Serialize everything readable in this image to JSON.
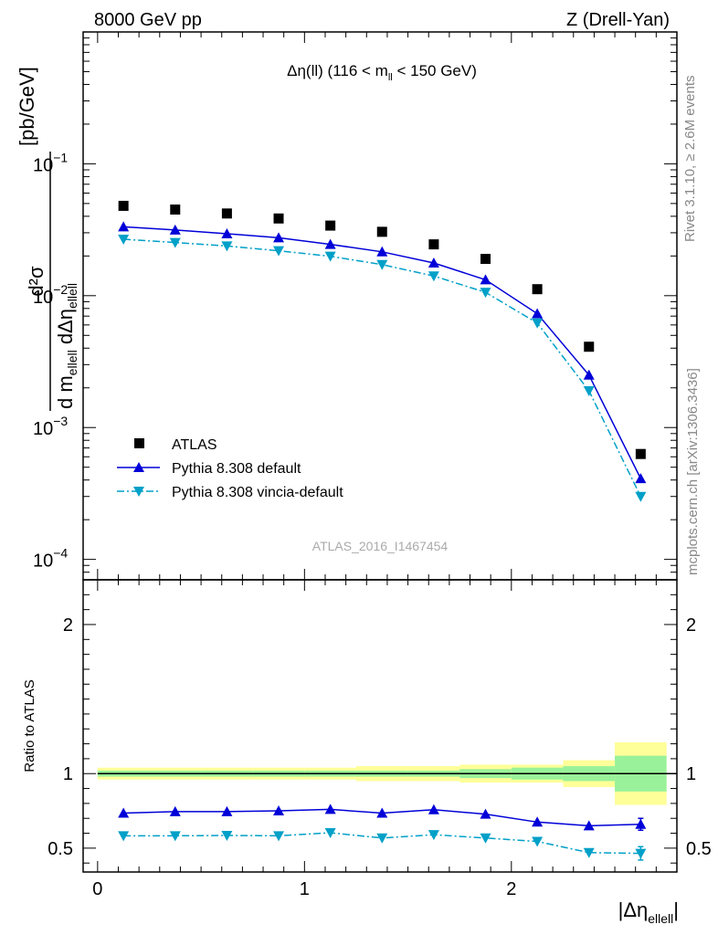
{
  "header": {
    "left": "8000 GeV pp",
    "right": "Z (Drell-Yan)"
  },
  "side_labels": {
    "rivet": "Rivet 3.1.10, ≥ 2.6M events",
    "mcplots": "mcplots.cern.ch [arXiv:1306.3436]"
  },
  "chart_data": {
    "type": "line",
    "title": "Δη(ll) (116 < m_ll < 150 GeV)",
    "title_parts": {
      "pre": "Δη(ll) (116 < m",
      "sub": "ll",
      "post": " < 150 GeV)"
    },
    "watermark": "ATLAS_2016_I1467454",
    "ylabel": {
      "num": "d²σ",
      "den_a": "d m",
      "den_sub": "ellell",
      "den_b": " dΔη",
      "den_sub2": "ellell",
      "unit": "[pb/GeV]"
    },
    "xlabel": {
      "pre": "|Δη",
      "sub": "ellell",
      "post": "|"
    },
    "xlim": [
      -0.07,
      2.8
    ],
    "ylim_log": [
      7e-05,
      1.0
    ],
    "x_ticks": [
      0,
      1,
      2
    ],
    "x_tick_labels": [
      "0",
      "1",
      "2"
    ],
    "y_ticks": [
      0.1,
      0.01,
      0.001,
      0.0001
    ],
    "y_tick_labels": [
      {
        "base": "10",
        "exp": "−1"
      },
      {
        "base": "10",
        "exp": "−2"
      },
      {
        "base": "10",
        "exp": "−3"
      },
      {
        "base": "10",
        "exp": "−4"
      }
    ],
    "bin_edges": [
      0,
      0.25,
      0.5,
      0.75,
      1.0,
      1.25,
      1.5,
      1.75,
      2.0,
      2.25,
      2.5,
      2.75
    ],
    "x": [
      0.125,
      0.375,
      0.625,
      0.875,
      1.125,
      1.375,
      1.625,
      1.875,
      2.125,
      2.375,
      2.625
    ],
    "series": [
      {
        "name": "ATLAS",
        "kind": "data",
        "color": "#000000",
        "values": [
          0.048,
          0.045,
          0.042,
          0.0385,
          0.034,
          0.0305,
          0.0245,
          0.019,
          0.0112,
          0.0041,
          0.00063
        ]
      },
      {
        "name": "Pythia 8.308 default",
        "kind": "mc",
        "color": "#0000d8",
        "marker": "triangle-up",
        "dash": "solid",
        "values": [
          0.0333,
          0.0315,
          0.0295,
          0.0275,
          0.0245,
          0.0215,
          0.0177,
          0.0132,
          0.0073,
          0.0025,
          0.00041
        ]
      },
      {
        "name": "Pythia 8.308 vincia-default",
        "kind": "mc",
        "color": "#00a0c8",
        "marker": "triangle-down",
        "dash": "dashdot",
        "values": [
          0.0268,
          0.0253,
          0.0238,
          0.0219,
          0.0199,
          0.0172,
          0.0141,
          0.0106,
          0.0062,
          0.0019,
          0.0003
        ]
      }
    ],
    "ratio": {
      "ylabel": "Ratio to ATLAS",
      "ylim": [
        0.34,
        2.3
      ],
      "y_ticks": [
        0.5,
        1,
        2
      ],
      "y_tick_labels": [
        "0.5",
        "1",
        "2"
      ],
      "band_inner": [
        0.02,
        0.02,
        0.02,
        0.02,
        0.02,
        0.02,
        0.02,
        0.03,
        0.04,
        0.05,
        0.12
      ],
      "band_outer": [
        0.04,
        0.04,
        0.04,
        0.04,
        0.04,
        0.05,
        0.05,
        0.06,
        0.06,
        0.09,
        0.21
      ],
      "series": [
        {
          "name": "Pythia 8.308 default",
          "values": [
            0.735,
            0.745,
            0.745,
            0.75,
            0.76,
            0.735,
            0.758,
            0.728,
            0.675,
            0.65,
            0.66
          ],
          "last_err": 0.04
        },
        {
          "name": "Pythia 8.308 vincia-default",
          "values": [
            0.583,
            0.583,
            0.585,
            0.583,
            0.603,
            0.568,
            0.59,
            0.568,
            0.545,
            0.47,
            0.465
          ],
          "last_err": 0.045
        }
      ]
    }
  }
}
